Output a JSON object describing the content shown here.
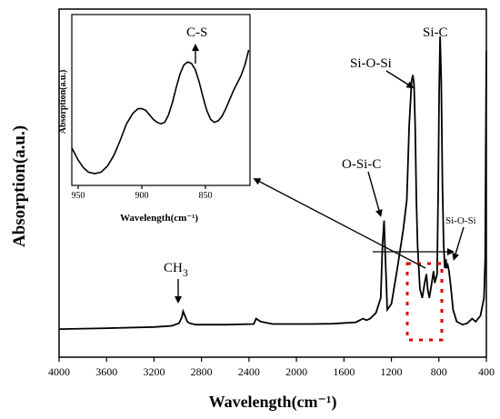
{
  "chart_data": [
    {
      "type": "line",
      "xlabel": "Wavelength(cm⁻¹)",
      "ylabel": "Absorption(a.u.)",
      "x_axis_reversed": true,
      "xlim": [
        4000,
        400
      ],
      "ylim": [
        0,
        1
      ],
      "xticks": [
        4000,
        3600,
        3200,
        2800,
        2400,
        2000,
        1600,
        1200,
        800,
        400
      ],
      "grid": false,
      "series": [
        {
          "x": [
            4000,
            3600,
            3200,
            3050,
            2990,
            2965,
            2955,
            2940,
            2920,
            2900,
            2850,
            2600,
            2360,
            2340,
            2300,
            2200,
            1900,
            1700,
            1500,
            1440,
            1410,
            1380,
            1330,
            1290,
            1275,
            1262,
            1250,
            1235,
            1200,
            1150,
            1100,
            1070,
            1050,
            1030,
            1020,
            1010,
            1000,
            990,
            980,
            960,
            940,
            920,
            905,
            895,
            880,
            860,
            845,
            835,
            815,
            805,
            798,
            790,
            780,
            770,
            760,
            750,
            740,
            735,
            725,
            715,
            700,
            680,
            650,
            600,
            560,
            520,
            490,
            450,
            420,
            410,
            405,
            400
          ],
          "y": [
            0.015,
            0.018,
            0.022,
            0.026,
            0.035,
            0.055,
            0.075,
            0.06,
            0.04,
            0.035,
            0.03,
            0.03,
            0.032,
            0.05,
            0.04,
            0.032,
            0.032,
            0.033,
            0.038,
            0.05,
            0.045,
            0.05,
            0.07,
            0.12,
            0.3,
            0.38,
            0.25,
            0.08,
            0.1,
            0.22,
            0.35,
            0.45,
            0.7,
            0.85,
            0.87,
            0.84,
            0.7,
            0.45,
            0.3,
            0.15,
            0.12,
            0.17,
            0.2,
            0.15,
            0.12,
            0.17,
            0.21,
            0.17,
            0.2,
            0.5,
            0.8,
            1.0,
            0.85,
            0.5,
            0.3,
            0.22,
            0.25,
            0.22,
            0.23,
            0.21,
            0.16,
            0.08,
            0.04,
            0.03,
            0.035,
            0.05,
            0.04,
            0.06,
            0.12,
            0.25,
            0.6,
            0.95
          ]
        }
      ],
      "annotations": [
        "CH",
        "3",
        "O-Si-C",
        "Si-O-Si",
        "Si-C",
        "Si-O-Si"
      ]
    },
    {
      "type": "line",
      "xlabel": "Wavelength(cm⁻¹)",
      "ylabel": "Absorption(a.u.)",
      "x_axis_reversed": true,
      "xlim": [
        955,
        815
      ],
      "ylim": [
        0,
        1
      ],
      "xticks": [
        950,
        900,
        850
      ],
      "grid": false,
      "series": [
        {
          "x": [
            955,
            950,
            946,
            942,
            937,
            932,
            927,
            922,
            917,
            912,
            907,
            903,
            900,
            897,
            894,
            891,
            888,
            885,
            882,
            879,
            876,
            873,
            870,
            867,
            864,
            861,
            858,
            855,
            852,
            849,
            846,
            843,
            840,
            837,
            834,
            831,
            828,
            825,
            822,
            819,
            816
          ],
          "y": [
            0.2,
            0.12,
            0.07,
            0.04,
            0.03,
            0.04,
            0.08,
            0.15,
            0.25,
            0.36,
            0.43,
            0.46,
            0.46,
            0.45,
            0.42,
            0.39,
            0.37,
            0.36,
            0.37,
            0.42,
            0.5,
            0.6,
            0.69,
            0.75,
            0.77,
            0.76,
            0.72,
            0.64,
            0.54,
            0.45,
            0.39,
            0.37,
            0.38,
            0.41,
            0.46,
            0.52,
            0.58,
            0.63,
            0.68,
            0.75,
            0.85
          ]
        }
      ],
      "annotations": [
        "C-S"
      ]
    }
  ]
}
